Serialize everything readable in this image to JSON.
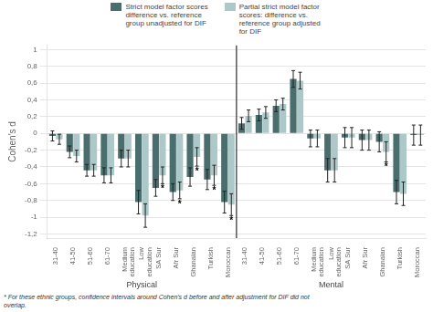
{
  "chart_data": {
    "type": "bar",
    "ylabel": "Cohen's d",
    "categories": [
      "31-40",
      "41-50",
      "51-60",
      "61-70",
      "Medium\neducation",
      "Low\neducation",
      "SA Sur",
      "Afr Sur",
      "Ghanaian",
      "Turkish",
      "Moroccan",
      "31-40",
      "41-50",
      "51-60",
      "61-70",
      "Medium\neducation",
      "Low\neducation",
      "SA Sur",
      "Afr Sur",
      "Ghanaian",
      "Turkish",
      "Moroccan"
    ],
    "sections": [
      {
        "label": "Physical",
        "count": 11
      },
      {
        "label": "Mental",
        "count": 11
      }
    ],
    "series": [
      {
        "name": "Strict model factor scores\ndifference vs. reference\ngroup unadjusted for DIF",
        "color": "#4a6e6e",
        "values": [
          -0.03,
          -0.22,
          -0.44,
          -0.5,
          -0.3,
          -0.82,
          -0.65,
          -0.7,
          -0.52,
          -0.55,
          -0.82,
          0.12,
          0.22,
          0.33,
          0.65,
          -0.06,
          -0.44,
          -0.05,
          -0.08,
          -0.1,
          -0.7,
          -0.02
        ],
        "errors": [
          0.06,
          0.07,
          0.07,
          0.09,
          0.1,
          0.14,
          0.1,
          0.1,
          0.11,
          0.12,
          0.13,
          0.07,
          0.07,
          0.07,
          0.1,
          0.1,
          0.14,
          0.12,
          0.12,
          0.12,
          0.14,
          0.12
        ]
      },
      {
        "name": "Partial strict model factor\nscores: difference vs.\nreference group adjusted\nfor DIF",
        "color": "#adc8c8",
        "values": [
          -0.07,
          -0.27,
          -0.44,
          -0.5,
          -0.3,
          -0.98,
          -0.5,
          -0.68,
          -0.28,
          -0.5,
          -0.85,
          0.21,
          0.25,
          0.35,
          0.63,
          -0.06,
          -0.44,
          -0.05,
          -0.08,
          -0.22,
          -0.72,
          -0.02
        ],
        "errors": [
          0.06,
          0.07,
          0.07,
          0.09,
          0.1,
          0.14,
          0.1,
          0.1,
          0.11,
          0.12,
          0.13,
          0.07,
          0.07,
          0.07,
          0.1,
          0.1,
          0.14,
          0.12,
          0.12,
          0.12,
          0.14,
          0.12
        ]
      }
    ],
    "annotations": [
      {
        "text": "*",
        "series": 1,
        "index": 6
      },
      {
        "text": "*",
        "series": 1,
        "index": 7
      },
      {
        "text": "*",
        "series": 1,
        "index": 8
      },
      {
        "text": "*",
        "series": 1,
        "index": 9
      },
      {
        "text": "*",
        "series": 1,
        "index": 10
      },
      {
        "text": "*",
        "series": 1,
        "index": 19
      }
    ],
    "ylim": [
      -1.25,
      1.05
    ],
    "yticks": [
      {
        "value": -1.2,
        "label": "-1,2"
      },
      -1,
      {
        "value": -0.8,
        "label": "-0,8"
      },
      {
        "value": -0.6,
        "label": "-0,6"
      },
      {
        "value": -0.4,
        "label": "-0,4"
      },
      {
        "value": -0.2,
        "label": "-0,2"
      },
      0,
      {
        "value": 0.2,
        "label": "0,2"
      },
      {
        "value": 0.4,
        "label": "0,4"
      },
      {
        "value": 0.6,
        "label": "0,6"
      },
      {
        "value": 0.8,
        "label": "0,8"
      },
      1
    ],
    "grid": true,
    "legend": "top",
    "footnote": "* For these ethnic groups, confidence intervals around Cohen's d before and after adjustment for DIF did not\noverlap."
  }
}
